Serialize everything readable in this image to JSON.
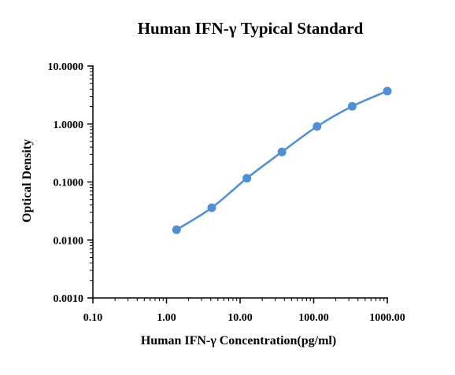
{
  "chart_data": {
    "type": "line",
    "title": "Human IFN-γ Typical Standard",
    "xlabel": "Human IFN-γ Concentration(pg/ml)",
    "ylabel": "Optical Density",
    "x_scale": "log",
    "y_scale": "log",
    "xlim": [
      0.1,
      1000
    ],
    "ylim": [
      0.001,
      10
    ],
    "x_ticks": [
      "0.10",
      "1.00",
      "10.00",
      "100.00",
      "1000.00"
    ],
    "y_ticks": [
      "0.0010",
      "0.0100",
      "0.1000",
      "1.0000",
      "10.0000"
    ],
    "grid": false,
    "legend": "none",
    "series": [
      {
        "x": [
          1.37,
          4.12,
          12.35,
          37.04,
          111.1,
          333.3,
          1000
        ],
        "y": [
          0.015,
          0.036,
          0.116,
          0.33,
          0.91,
          2.02,
          3.7
        ],
        "color": "#4f8fd4"
      }
    ]
  }
}
